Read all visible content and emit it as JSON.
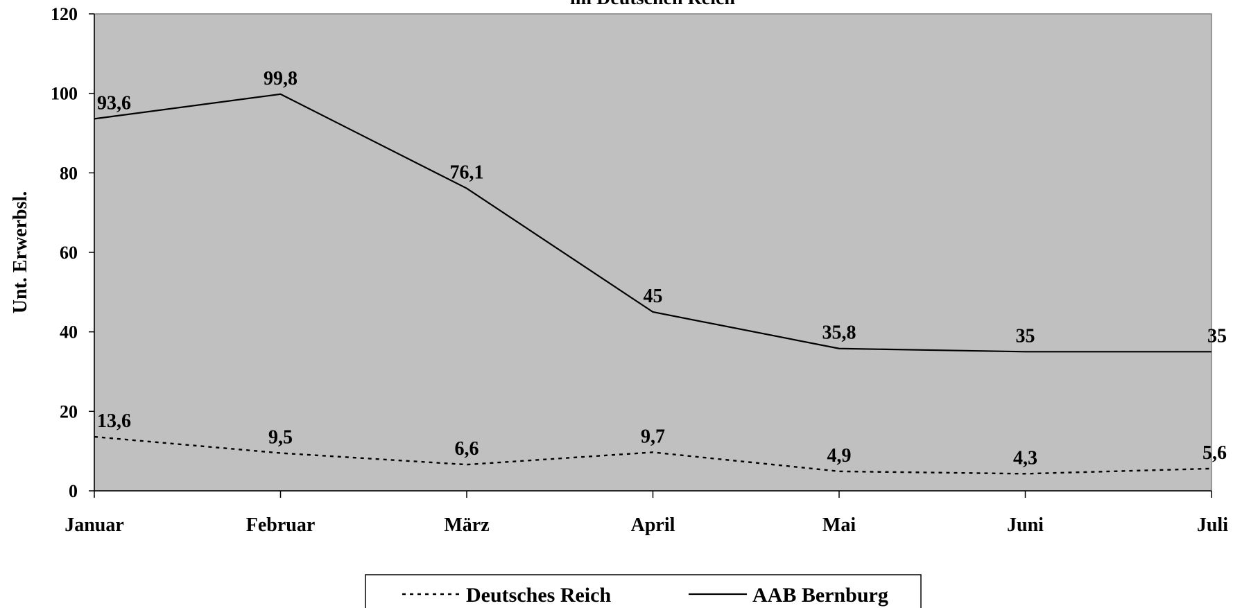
{
  "chart_data": {
    "type": "line",
    "title": "im Deutschen Reich",
    "xlabel": "",
    "ylabel": "Unt. Erwerbsl.",
    "categories": [
      "Januar",
      "Februar",
      "März",
      "April",
      "Mai",
      "Juni",
      "Juli"
    ],
    "ylim": [
      0,
      120
    ],
    "yticks": [
      "0",
      "20",
      "40",
      "60",
      "80",
      "100",
      "120"
    ],
    "grid": false,
    "plot_background": "#c0c0c0",
    "legend_position": "bottom",
    "series": [
      {
        "name": "Deutsches Reich",
        "style": "dotted",
        "color": "#000000",
        "values": [
          13.6,
          9.5,
          6.6,
          9.7,
          4.9,
          4.3,
          5.6
        ],
        "labels": [
          "13,6",
          "9,5",
          "6,6",
          "9,7",
          "4,9",
          "4,3",
          "5,6"
        ]
      },
      {
        "name": "AAB Bernburg",
        "style": "solid",
        "color": "#000000",
        "values": [
          93.6,
          99.8,
          76.1,
          45,
          35.8,
          35,
          35
        ],
        "labels": [
          "93,6",
          "99,8",
          "76,1",
          "45",
          "35,8",
          "35",
          "35"
        ]
      }
    ]
  }
}
